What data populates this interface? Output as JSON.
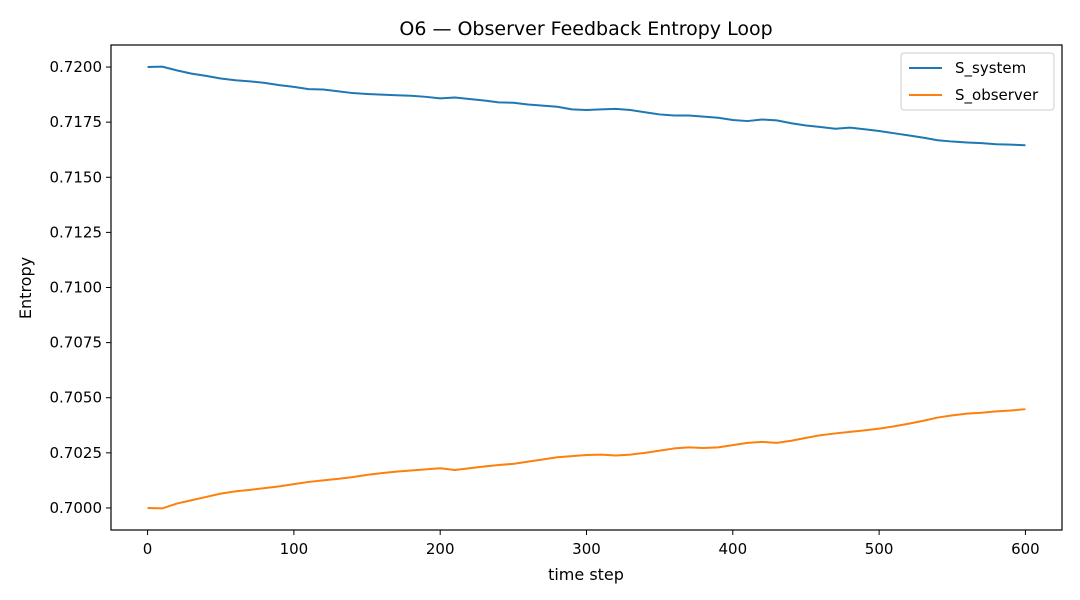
{
  "chart_data": {
    "type": "line",
    "title": "O6 — Observer Feedback Entropy Loop",
    "xlabel": "time step",
    "ylabel": "Entropy",
    "xlim": [
      -25,
      625
    ],
    "ylim": [
      0.699,
      0.721
    ],
    "x_ticks": [
      0,
      100,
      200,
      300,
      400,
      500,
      600
    ],
    "x_tick_labels": [
      "0",
      "100",
      "200",
      "300",
      "400",
      "500",
      "600"
    ],
    "y_ticks": [
      0.7,
      0.7025,
      0.705,
      0.7075,
      0.71,
      0.7125,
      0.715,
      0.7175,
      0.72
    ],
    "y_tick_labels": [
      "0.7000",
      "0.7025",
      "0.7050",
      "0.7075",
      "0.7100",
      "0.7125",
      "0.7150",
      "0.7175",
      "0.7200"
    ],
    "grid": false,
    "legend_position": "top-right",
    "series": [
      {
        "name": "S_system",
        "color": "#1f77b4",
        "x": [
          0,
          10,
          20,
          30,
          40,
          50,
          60,
          70,
          80,
          90,
          100,
          110,
          120,
          130,
          140,
          150,
          160,
          170,
          180,
          190,
          200,
          210,
          220,
          230,
          240,
          250,
          260,
          270,
          280,
          290,
          300,
          310,
          320,
          330,
          340,
          350,
          360,
          370,
          380,
          390,
          400,
          410,
          420,
          430,
          440,
          450,
          460,
          470,
          480,
          490,
          500,
          510,
          520,
          530,
          540,
          550,
          560,
          570,
          580,
          590,
          600
        ],
        "y": [
          0.72,
          0.72002,
          0.71985,
          0.7197,
          0.7196,
          0.71948,
          0.7194,
          0.71935,
          0.71928,
          0.71918,
          0.7191,
          0.719,
          0.71898,
          0.7189,
          0.71882,
          0.71878,
          0.71875,
          0.71872,
          0.7187,
          0.71865,
          0.71858,
          0.71862,
          0.71855,
          0.71848,
          0.7184,
          0.71838,
          0.7183,
          0.71825,
          0.7182,
          0.71808,
          0.71805,
          0.71808,
          0.7181,
          0.71805,
          0.71795,
          0.71785,
          0.7178,
          0.7178,
          0.71775,
          0.7177,
          0.7176,
          0.71755,
          0.71762,
          0.71758,
          0.71745,
          0.71735,
          0.71728,
          0.7172,
          0.71725,
          0.71718,
          0.7171,
          0.717,
          0.7169,
          0.7168,
          0.71668,
          0.71662,
          0.71658,
          0.71655,
          0.7165,
          0.71648,
          0.71645
        ]
      },
      {
        "name": "S_observer",
        "color": "#ff7f0e",
        "x": [
          0,
          10,
          20,
          30,
          40,
          50,
          60,
          70,
          80,
          90,
          100,
          110,
          120,
          130,
          140,
          150,
          160,
          170,
          180,
          190,
          200,
          210,
          220,
          230,
          240,
          250,
          260,
          270,
          280,
          290,
          300,
          310,
          320,
          330,
          340,
          350,
          360,
          370,
          380,
          390,
          400,
          410,
          420,
          430,
          440,
          450,
          460,
          470,
          480,
          490,
          500,
          510,
          520,
          530,
          540,
          550,
          560,
          570,
          580,
          590,
          600
        ],
        "y": [
          0.7,
          0.69998,
          0.7002,
          0.70035,
          0.7005,
          0.70065,
          0.70075,
          0.70082,
          0.7009,
          0.70098,
          0.70108,
          0.70118,
          0.70125,
          0.70132,
          0.7014,
          0.7015,
          0.70158,
          0.70165,
          0.7017,
          0.70175,
          0.7018,
          0.70172,
          0.7018,
          0.70188,
          0.70195,
          0.702,
          0.7021,
          0.7022,
          0.7023,
          0.70235,
          0.7024,
          0.70242,
          0.70238,
          0.70242,
          0.7025,
          0.7026,
          0.7027,
          0.70275,
          0.70272,
          0.70275,
          0.70285,
          0.70295,
          0.703,
          0.70295,
          0.70305,
          0.70318,
          0.7033,
          0.70338,
          0.70345,
          0.70352,
          0.7036,
          0.7037,
          0.70382,
          0.70395,
          0.7041,
          0.7042,
          0.70428,
          0.70432,
          0.70438,
          0.70442,
          0.70448
        ]
      }
    ]
  }
}
